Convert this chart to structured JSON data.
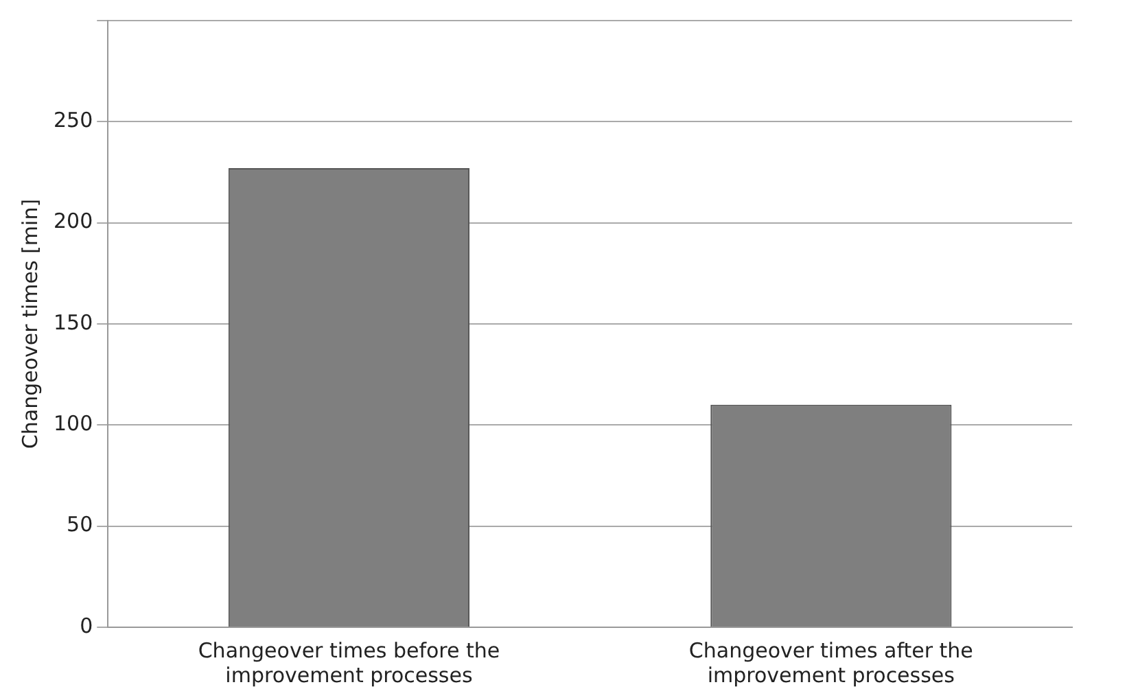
{
  "chart_data": {
    "type": "bar",
    "ylabel": "Changeover times [min]",
    "categories": [
      "Changeover times before the improvement processes",
      "Changeover times after the improvement processes"
    ],
    "values": [
      227,
      110
    ],
    "color": "#7f7f7f",
    "ylim": [
      0,
      300
    ],
    "yticks": [
      0,
      50,
      100,
      150,
      200,
      250,
      {
        "value": 300,
        "label": null
      }
    ],
    "grid": "y"
  }
}
